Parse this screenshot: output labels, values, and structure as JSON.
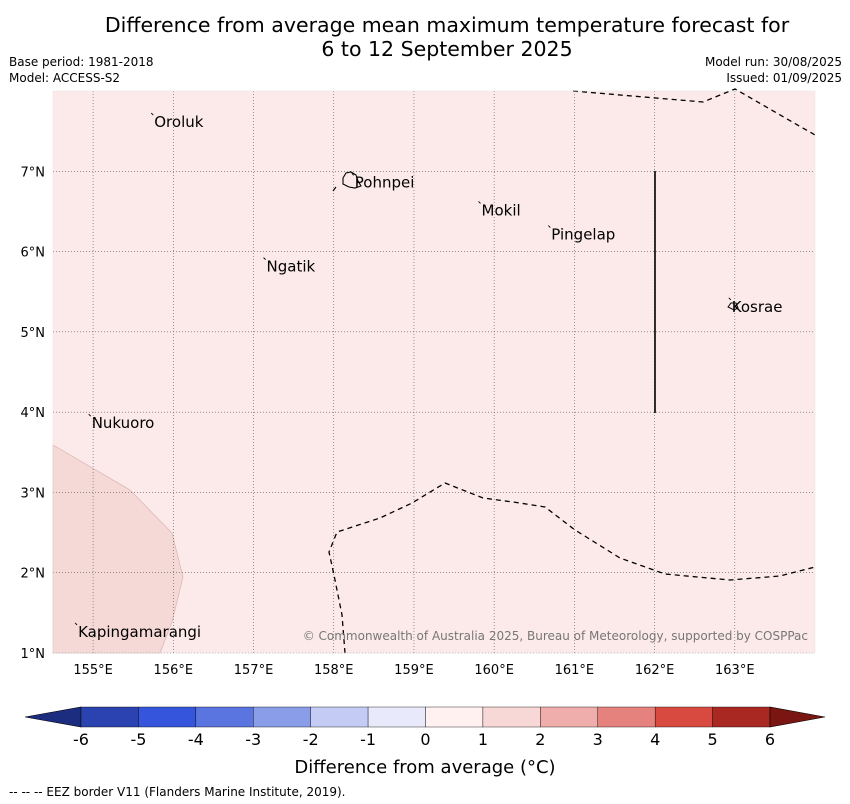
{
  "title_line1": "Difference from average mean maximum temperature forecast for",
  "title_line2": "6 to 12 September 2025",
  "meta": {
    "base_period": "Base period: 1981-2018",
    "model": "Model: ACCESS-S2",
    "model_run": "Model run: 30/08/2025",
    "issued": "Issued: 01/09/2025"
  },
  "map": {
    "lon_range": [
      154.5,
      164
    ],
    "lat_range": [
      1,
      8
    ],
    "background_color": "#fbeae9",
    "lat_labels": [
      "1°N",
      "2°N",
      "3°N",
      "4°N",
      "5°N",
      "6°N",
      "7°N"
    ],
    "lon_labels": [
      "155°E",
      "156°E",
      "157°E",
      "158°E",
      "159°E",
      "160°E",
      "161°E",
      "162°E",
      "163°E"
    ],
    "places": [
      {
        "name": "Oroluk",
        "lon": 155.75,
        "lat": 7.6
      },
      {
        "name": "Pohnpei",
        "lon": 158.25,
        "lat": 6.85
      },
      {
        "name": "Mokil",
        "lon": 159.83,
        "lat": 6.5
      },
      {
        "name": "Pingelap",
        "lon": 160.7,
        "lat": 6.2
      },
      {
        "name": "Ngatik",
        "lon": 157.15,
        "lat": 5.8
      },
      {
        "name": "Kosrae",
        "lon": 162.95,
        "lat": 5.3
      },
      {
        "name": "Nukuoro",
        "lon": 154.97,
        "lat": 3.85
      },
      {
        "name": "Kapingamarangi",
        "lon": 154.8,
        "lat": 1.25
      }
    ],
    "copyright": "© Commonwealth of Australia 2025, Bureau of Meteorology, supported by COSPPac"
  },
  "colorbar": {
    "label": "Difference from average (°C)",
    "ticks": [
      "-6",
      "-5",
      "-4",
      "-3",
      "-2",
      "-1",
      "0",
      "1",
      "2",
      "3",
      "4",
      "5",
      "6"
    ],
    "colors": [
      "#1c2d80",
      "#2a43b0",
      "#3555dc",
      "#5a74e0",
      "#8a9de8",
      "#c4cbf5",
      "#e8eafb",
      "#fff1f0",
      "#f7d8d6",
      "#efadab",
      "#e6827d",
      "#d84a40",
      "#aa2822",
      "#7a1612"
    ]
  },
  "footer_note": "--  --  -- EEZ border V11 (Flanders Marine Institute, 2019)."
}
